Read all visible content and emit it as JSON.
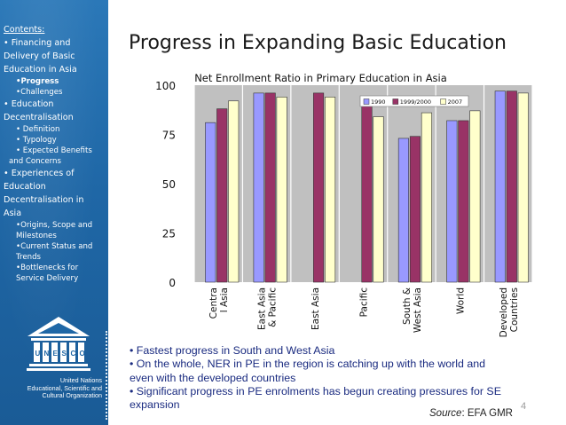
{
  "slide_title": "Progress in Expanding Basic Education",
  "sidebar": {
    "contents_header": "Contents:",
    "items": [
      {
        "level": 1,
        "text": "• Financing and"
      },
      {
        "level": 1,
        "text": "Delivery of Basic"
      },
      {
        "level": 1,
        "text": "Education in Asia"
      },
      {
        "level": 2,
        "text": "•Progress",
        "active": true
      },
      {
        "level": 2,
        "text": "•Challenges"
      },
      {
        "level": 1,
        "text": "• Education"
      },
      {
        "level": 1,
        "text": "Decentralisation"
      },
      {
        "level": 2,
        "text": "• Definition"
      },
      {
        "level": 2,
        "text": "• Typology"
      },
      {
        "level": 2,
        "text": "• Expected Benefits"
      },
      {
        "level": 3,
        "text": "and Concerns"
      },
      {
        "level": 1,
        "text": "• Experiences of"
      },
      {
        "level": 1,
        "text": "Education"
      },
      {
        "level": 1,
        "text": "Decentralisation in"
      },
      {
        "level": 1,
        "text": "Asia"
      },
      {
        "level": 2,
        "text": "•Origins, Scope and"
      },
      {
        "level": 2,
        "text": "Milestones"
      },
      {
        "level": 2,
        "text": "•Current Status and"
      },
      {
        "level": 2,
        "text": "Trends"
      },
      {
        "level": 2,
        "text": "•Bottlenecks for"
      },
      {
        "level": 2,
        "text": "Service Delivery"
      }
    ],
    "logo_text": [
      "United Nations",
      "Educational, Scientific and",
      "Cultural Organization"
    ],
    "logo_word": "UNESCO"
  },
  "chart_data": {
    "type": "bar",
    "title": "Net Enrollment Ratio in Primary Education in Asia",
    "categories": [
      "Centra\nl Asia",
      "East Asia\n& Pacific",
      "East Asia",
      "Pacific",
      "South &\nWest Asia",
      "World",
      "Developed\nCountries"
    ],
    "series": [
      {
        "name": "1990",
        "color": "#9999ff",
        "values": [
          81,
          96,
          null,
          null,
          73,
          82,
          97
        ]
      },
      {
        "name": "1999/2000",
        "color": "#993366",
        "values": [
          88,
          96,
          96,
          90,
          74,
          82,
          97
        ]
      },
      {
        "name": "2007",
        "color": "#ffffcc",
        "values": [
          92,
          94,
          94,
          84,
          86,
          87,
          96
        ]
      }
    ],
    "yticks": [
      0,
      25,
      50,
      75,
      100
    ],
    "ylim": [
      0,
      100
    ],
    "grid": false,
    "legend_position": "top-right"
  },
  "bullets": [
    "• Fastest progress in South and West Asia",
    "• On the whole, NER in PE in the region is catching up with the world and",
    "even with the developed countries",
    "• Significant progress in PE enrolments has begun creating pressures for SE",
    "expansion"
  ],
  "source": {
    "label": "Source",
    "value": ": EFA GMR"
  },
  "page_number": "4"
}
